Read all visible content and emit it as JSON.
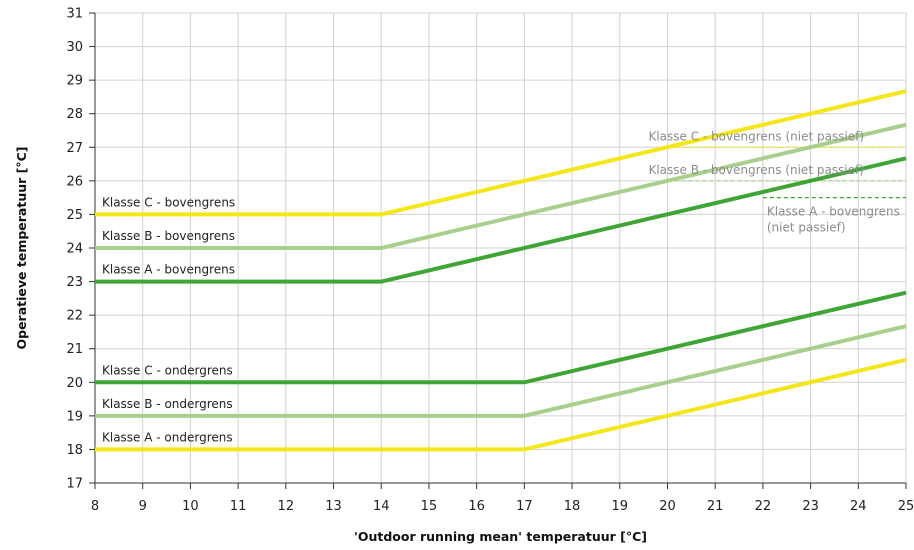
{
  "chart_data": {
    "type": "line",
    "xlabel": "'Outdoor running mean' temperatuur [°C]",
    "ylabel": "Operatieve temperatuur [°C]",
    "xlim": [
      8,
      25
    ],
    "ylim": [
      17,
      31
    ],
    "xticks": [
      8,
      9,
      10,
      11,
      12,
      13,
      14,
      15,
      16,
      17,
      18,
      19,
      20,
      21,
      22,
      23,
      24,
      25
    ],
    "yticks": [
      17,
      18,
      19,
      20,
      21,
      22,
      23,
      24,
      25,
      26,
      27,
      28,
      29,
      30,
      31
    ],
    "grid": true,
    "colors": {
      "yellow": "#f5e61a",
      "lightgreen": "#a8d08d",
      "green": "#3fa535",
      "label_dark": "#222222",
      "label_grey": "#8c8c8c",
      "grid": "#d0d0d0"
    },
    "series": [
      {
        "name": "Klasse C - bovengrens",
        "color": "yellow",
        "x": [
          8,
          14,
          25
        ],
        "y": [
          25,
          25,
          28.67
        ]
      },
      {
        "name": "Klasse B - bovengrens",
        "color": "lightgreen",
        "x": [
          8,
          14,
          25
        ],
        "y": [
          24,
          24,
          27.67
        ]
      },
      {
        "name": "Klasse A - bovengrens",
        "color": "green",
        "x": [
          8,
          14,
          25
        ],
        "y": [
          23,
          23,
          26.67
        ]
      },
      {
        "name": "Klasse C - ondergrens",
        "color": "green",
        "x": [
          8,
          17,
          25
        ],
        "y": [
          20,
          20,
          22.67
        ]
      },
      {
        "name": "Klasse B - ondergrens",
        "color": "lightgreen",
        "x": [
          8,
          17,
          25
        ],
        "y": [
          19,
          19,
          21.67
        ]
      },
      {
        "name": "Klasse A - ondergrens",
        "color": "yellow",
        "x": [
          8,
          17,
          25
        ],
        "y": [
          18,
          18,
          20.67
        ]
      }
    ],
    "passive_limits": [
      {
        "name": "Klasse C - bovengrens (niet passief)",
        "color": "yellow",
        "x": [
          20,
          25
        ],
        "y": 27
      },
      {
        "name": "Klasse B - bovengrens (niet passief)",
        "color": "lightgreen",
        "x": [
          20,
          25
        ],
        "y": 26
      },
      {
        "name": "Klasse A - bovengrens (niet passief)",
        "label_lines": [
          "Klasse A - bovengrens",
          "(niet passief)"
        ],
        "color": "green",
        "x": [
          22,
          25
        ],
        "y": 25.5
      }
    ]
  }
}
